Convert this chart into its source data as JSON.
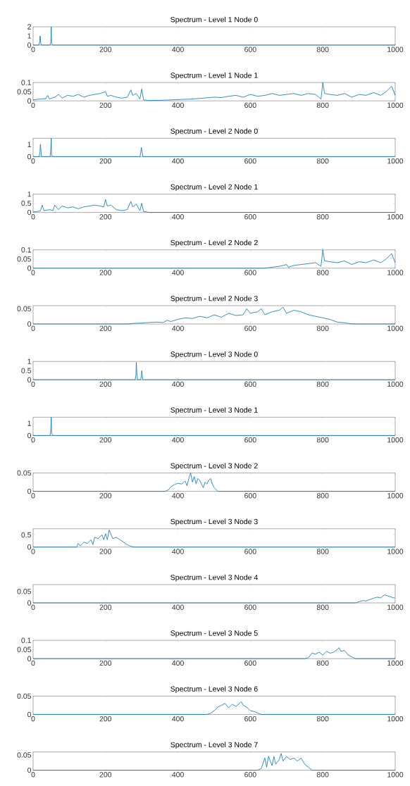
{
  "chart_data": [
    {
      "type": "line",
      "title": "Spectrum - Level 1 Node 0",
      "color": "#0072bd",
      "xlim": [
        0,
        1000
      ],
      "xticks": [
        0,
        200,
        400,
        600,
        800,
        1000
      ],
      "ylim": [
        0,
        2
      ],
      "yticks": [
        0,
        1,
        2
      ],
      "x": [
        0,
        16,
        18,
        19,
        20,
        21,
        23,
        47,
        49,
        50,
        51,
        53,
        1000
      ],
      "values": [
        0,
        0,
        0.3,
        1.0,
        0.9,
        0.2,
        0,
        0,
        0.3,
        2,
        0.3,
        0,
        0
      ]
    },
    {
      "type": "line",
      "title": "Spectrum - Level 1 Node 1",
      "color": "#0072bd",
      "xlim": [
        0,
        1000
      ],
      "xticks": [
        0,
        200,
        400,
        600,
        800,
        1000
      ],
      "ylim": [
        0,
        0.1
      ],
      "yticks": [
        0,
        0.05,
        0.1
      ],
      "x": [
        0,
        10,
        20,
        35,
        40,
        45,
        60,
        70,
        80,
        95,
        110,
        125,
        140,
        155,
        170,
        185,
        200,
        205,
        215,
        230,
        245,
        260,
        270,
        275,
        285,
        295,
        300,
        305,
        320,
        350,
        380,
        410,
        440,
        470,
        500,
        520,
        540,
        560,
        580,
        600,
        620,
        640,
        660,
        680,
        700,
        720,
        740,
        760,
        780,
        795,
        800,
        805,
        820,
        840,
        860,
        880,
        900,
        920,
        940,
        960,
        975,
        990,
        1000
      ],
      "values": [
        0.005,
        0.008,
        0.01,
        0.012,
        0.03,
        0.01,
        0.02,
        0.035,
        0.015,
        0.03,
        0.025,
        0.035,
        0.02,
        0.03,
        0.035,
        0.04,
        0.05,
        0.025,
        0.03,
        0.02,
        0.015,
        0.02,
        0.06,
        0.03,
        0.04,
        0.01,
        0.065,
        0.005,
        0.002,
        0.003,
        0.005,
        0.008,
        0.01,
        0.015,
        0.02,
        0.018,
        0.025,
        0.03,
        0.02,
        0.035,
        0.025,
        0.03,
        0.04,
        0.03,
        0.035,
        0.04,
        0.03,
        0.04,
        0.035,
        0.01,
        0.1,
        0.04,
        0.035,
        0.03,
        0.04,
        0.02,
        0.035,
        0.03,
        0.045,
        0.03,
        0.05,
        0.08,
        0.03
      ]
    },
    {
      "type": "line",
      "title": "Spectrum - Level 2 Node 0",
      "color": "#0072bd",
      "xlim": [
        0,
        1000
      ],
      "xticks": [
        0,
        200,
        400,
        600,
        800,
        1000
      ],
      "ylim": [
        0,
        1.5
      ],
      "yticks": [
        0,
        1
      ],
      "x": [
        0,
        17,
        19,
        20,
        21,
        23,
        47,
        49,
        50,
        51,
        53,
        295,
        297,
        299,
        301,
        303,
        1000
      ],
      "values": [
        0,
        0,
        0.4,
        1.0,
        0.8,
        0,
        0,
        0.6,
        1.5,
        0.2,
        0,
        0,
        0.3,
        0.75,
        0.4,
        0,
        0
      ]
    },
    {
      "type": "line",
      "title": "Spectrum - Level 2 Node 1",
      "color": "#0072bd",
      "xlim": [
        0,
        1000
      ],
      "xticks": [
        0,
        200,
        400,
        600,
        800,
        1000
      ],
      "ylim": [
        0,
        1
      ],
      "yticks": [
        0,
        0.5,
        1
      ],
      "x": [
        0,
        10,
        20,
        25,
        30,
        45,
        55,
        60,
        70,
        80,
        95,
        110,
        125,
        140,
        155,
        170,
        185,
        195,
        200,
        205,
        215,
        230,
        245,
        260,
        270,
        275,
        285,
        295,
        300,
        305,
        320,
        1000
      ],
      "values": [
        0.02,
        0.05,
        0.08,
        0.4,
        0.1,
        0.15,
        0.1,
        0.4,
        0.15,
        0.35,
        0.25,
        0.3,
        0.2,
        0.3,
        0.35,
        0.4,
        0.35,
        0.3,
        0.7,
        0.35,
        0.4,
        0.15,
        0.1,
        0.15,
        0.6,
        0.3,
        0.45,
        0.1,
        0.5,
        0.05,
        0,
        0
      ]
    },
    {
      "type": "line",
      "title": "Spectrum - Level 2 Node 2",
      "color": "#0072bd",
      "xlim": [
        0,
        1000
      ],
      "xticks": [
        0,
        200,
        400,
        600,
        800,
        1000
      ],
      "ylim": [
        0,
        0.1
      ],
      "yticks": [
        0,
        0.05,
        0.1
      ],
      "x": [
        0,
        640,
        660,
        680,
        700,
        705,
        720,
        740,
        760,
        780,
        795,
        800,
        805,
        820,
        840,
        860,
        880,
        900,
        920,
        940,
        960,
        975,
        990,
        1000
      ],
      "values": [
        0,
        0,
        0.005,
        0.01,
        0.02,
        0.005,
        0.015,
        0.02,
        0.025,
        0.03,
        0.01,
        0.1,
        0.04,
        0.035,
        0.03,
        0.04,
        0.02,
        0.035,
        0.03,
        0.045,
        0.03,
        0.05,
        0.08,
        0.03
      ]
    },
    {
      "type": "line",
      "title": "Spectrum - Level 2 Node 3",
      "color": "#0072bd",
      "xlim": [
        0,
        1000
      ],
      "xticks": [
        0,
        200,
        400,
        600,
        800,
        1000
      ],
      "ylim": [
        0,
        0.06
      ],
      "yticks": [
        0,
        0.05
      ],
      "x": [
        0,
        260,
        280,
        300,
        320,
        340,
        360,
        370,
        380,
        400,
        420,
        440,
        460,
        480,
        500,
        520,
        540,
        560,
        580,
        590,
        600,
        620,
        630,
        640,
        660,
        680,
        690,
        700,
        720,
        740,
        760,
        780,
        800,
        820,
        840,
        860,
        880,
        1000
      ],
      "values": [
        0,
        0,
        0.002,
        0.003,
        0.005,
        0.006,
        0.005,
        0.012,
        0.008,
        0.015,
        0.02,
        0.018,
        0.025,
        0.02,
        0.03,
        0.022,
        0.035,
        0.028,
        0.03,
        0.05,
        0.035,
        0.04,
        0.05,
        0.03,
        0.04,
        0.045,
        0.055,
        0.035,
        0.045,
        0.04,
        0.03,
        0.025,
        0.02,
        0.015,
        0.006,
        0.004,
        0,
        0
      ]
    },
    {
      "type": "line",
      "title": "Spectrum - Level 3 Node 0",
      "color": "#0072bd",
      "xlim": [
        0,
        1000
      ],
      "xticks": [
        0,
        200,
        400,
        600,
        800,
        1000
      ],
      "ylim": [
        0,
        1
      ],
      "yticks": [
        0,
        0.5,
        1
      ],
      "x": [
        0,
        282,
        284,
        285,
        286,
        288,
        297,
        299,
        300,
        301,
        303,
        1000
      ],
      "values": [
        0,
        0,
        0.3,
        0.95,
        0.5,
        0,
        0,
        0.2,
        0.5,
        0.3,
        0,
        0
      ]
    },
    {
      "type": "line",
      "title": "Spectrum - Level 3 Node 1",
      "color": "#0072bd",
      "xlim": [
        0,
        1000
      ],
      "xticks": [
        0,
        200,
        400,
        600,
        800,
        1000
      ],
      "ylim": [
        0,
        1.5
      ],
      "yticks": [
        0,
        1
      ],
      "x": [
        0,
        47,
        49,
        50,
        51,
        53,
        1000
      ],
      "values": [
        0,
        0,
        0.5,
        1.5,
        0.3,
        0,
        0
      ]
    },
    {
      "type": "line",
      "title": "Spectrum - Level 3 Node 2",
      "color": "#0072bd",
      "xlim": [
        0,
        1000
      ],
      "xticks": [
        0,
        200,
        400,
        600,
        800,
        1000
      ],
      "ylim": [
        0,
        0.05
      ],
      "yticks": [
        0,
        0.05
      ],
      "x": [
        0,
        365,
        375,
        380,
        390,
        400,
        410,
        420,
        425,
        430,
        435,
        440,
        445,
        450,
        455,
        460,
        470,
        475,
        480,
        485,
        490,
        495,
        500,
        510,
        1000
      ],
      "values": [
        0,
        0,
        0.005,
        0.012,
        0.018,
        0.022,
        0.02,
        0.028,
        0.015,
        0.035,
        0.05,
        0.025,
        0.04,
        0.02,
        0.035,
        0.03,
        0.01,
        0.025,
        0.02,
        0.03,
        0.035,
        0.02,
        0.01,
        0,
        0
      ]
    },
    {
      "type": "line",
      "title": "Spectrum - Level 3 Node 3",
      "color": "#0072bd",
      "xlim": [
        0,
        1000
      ],
      "xticks": [
        0,
        200,
        400,
        600,
        800,
        1000
      ],
      "ylim": [
        0,
        0.75
      ],
      "yticks": [
        0,
        0.5
      ],
      "x": [
        0,
        120,
        125,
        130,
        140,
        150,
        160,
        165,
        170,
        180,
        190,
        195,
        200,
        205,
        210,
        220,
        230,
        240,
        250,
        260,
        270,
        280,
        1000
      ],
      "values": [
        0,
        0,
        0.15,
        0.05,
        0.2,
        0.15,
        0.3,
        0.1,
        0.4,
        0.35,
        0.5,
        0.3,
        0.55,
        0.3,
        0.7,
        0.35,
        0.4,
        0.3,
        0.2,
        0.1,
        0.03,
        0,
        0
      ]
    },
    {
      "type": "line",
      "title": "Spectrum - Level 3 Node 4",
      "color": "#0072bd",
      "xlim": [
        0,
        1000
      ],
      "xticks": [
        0,
        200,
        400,
        600,
        800,
        1000
      ],
      "ylim": [
        0,
        0.08
      ],
      "yticks": [
        0,
        0.05
      ],
      "x": [
        0,
        890,
        900,
        910,
        920,
        930,
        940,
        950,
        960,
        970,
        980,
        990,
        1000
      ],
      "values": [
        0,
        0,
        0.005,
        0.01,
        0.008,
        0.015,
        0.02,
        0.025,
        0.022,
        0.035,
        0.03,
        0.025,
        0.02
      ]
    },
    {
      "type": "line",
      "title": "Spectrum - Level 3 Node 5",
      "color": "#0072bd",
      "xlim": [
        0,
        1000
      ],
      "xticks": [
        0,
        200,
        400,
        600,
        800,
        1000
      ],
      "ylim": [
        0,
        0.1
      ],
      "yticks": [
        0,
        0.05,
        0.1
      ],
      "x": [
        0,
        750,
        760,
        770,
        780,
        790,
        800,
        810,
        820,
        830,
        840,
        845,
        850,
        860,
        870,
        880,
        890,
        1000
      ],
      "values": [
        0,
        0,
        0.005,
        0.03,
        0.025,
        0.035,
        0.02,
        0.04,
        0.03,
        0.035,
        0.05,
        0.06,
        0.04,
        0.045,
        0.02,
        0.01,
        0,
        0
      ]
    },
    {
      "type": "line",
      "title": "Spectrum - Level 3 Node 6",
      "color": "#0072bd",
      "xlim": [
        0,
        1000
      ],
      "xticks": [
        0,
        200,
        400,
        600,
        800,
        1000
      ],
      "ylim": [
        0,
        0.05
      ],
      "yticks": [
        0,
        0.05
      ],
      "x": [
        0,
        480,
        490,
        500,
        510,
        520,
        530,
        540,
        550,
        560,
        570,
        575,
        580,
        590,
        600,
        610,
        620,
        630,
        1000
      ],
      "values": [
        0,
        0,
        0.003,
        0.01,
        0.02,
        0.025,
        0.03,
        0.018,
        0.028,
        0.022,
        0.03,
        0.035,
        0.025,
        0.02,
        0.01,
        0.008,
        0.004,
        0,
        0
      ]
    },
    {
      "type": "line",
      "title": "Spectrum - Level 3 Node 7",
      "color": "#0072bd",
      "xlim": [
        0,
        1000
      ],
      "xticks": [
        0,
        200,
        400,
        600,
        800,
        1000
      ],
      "ylim": [
        0,
        0.06
      ],
      "yticks": [
        0,
        0.05
      ],
      "x": [
        0,
        620,
        630,
        640,
        645,
        650,
        660,
        665,
        670,
        680,
        685,
        690,
        700,
        710,
        720,
        730,
        740,
        750,
        760,
        770,
        1000
      ],
      "values": [
        0,
        0,
        0.005,
        0.04,
        0.01,
        0.045,
        0.015,
        0.045,
        0.02,
        0.035,
        0.055,
        0.03,
        0.045,
        0.035,
        0.04,
        0.03,
        0.04,
        0.02,
        0.01,
        0,
        0
      ]
    }
  ]
}
